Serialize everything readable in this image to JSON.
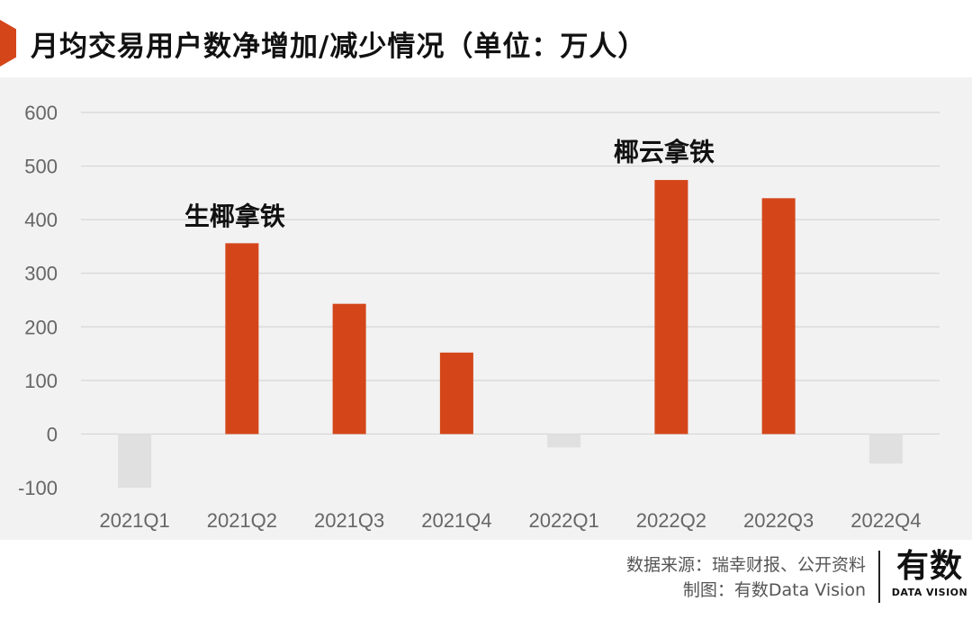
{
  "header": {
    "title": "月均交易用户数净增加/减少情况（单位：万人）"
  },
  "chart_data": {
    "type": "bar",
    "title": "月均交易用户数净增加/减少情况（单位：万人）",
    "xlabel": "",
    "ylabel": "",
    "categories": [
      "2021Q1",
      "2021Q2",
      "2021Q3",
      "2021Q4",
      "2022Q1",
      "2022Q2",
      "2022Q3",
      "2022Q4"
    ],
    "values": [
      -100,
      356,
      243,
      152,
      -25,
      474,
      440,
      -55
    ],
    "ylim": [
      -100,
      600
    ],
    "yticks": [
      -100,
      0,
      100,
      200,
      300,
      400,
      500,
      600
    ],
    "grid": true,
    "colors": {
      "positive": "#d4461a",
      "negative": "#e0e0e0",
      "grid": "#d6d6d6",
      "axis_text": "#666666"
    },
    "annotations": [
      {
        "text": "生椰拿铁",
        "category": "2021Q2",
        "value": 410
      },
      {
        "text": "椰云拿铁",
        "category": "2022Q2",
        "value": 530
      }
    ]
  },
  "footer": {
    "source": "数据来源：瑞幸财报、公开资料",
    "credit": "制图：有数Data Vision",
    "logo_main": "有数",
    "logo_sub": "DATA VISION"
  }
}
